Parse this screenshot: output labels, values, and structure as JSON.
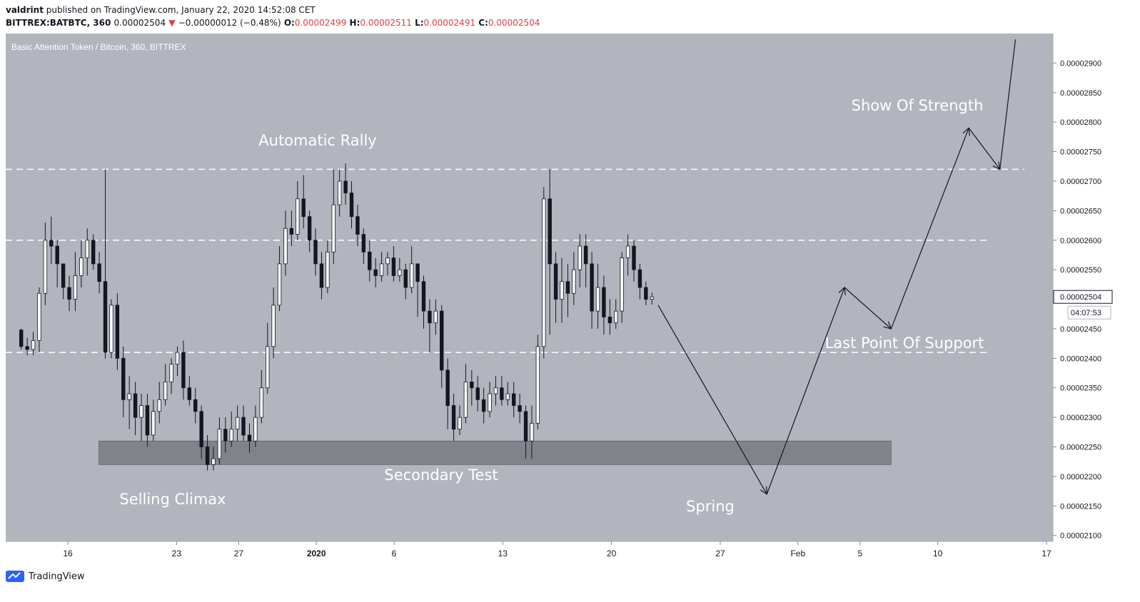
{
  "header": {
    "user": "valdrint",
    "published_text": " published on TradingView.com, January 22, 2020 14:52:08 CET",
    "symbol": "BITTREX:BATBTC, 360",
    "price": "0.00002504",
    "change": "−0.00000012 (−0.48%)",
    "o_label": "O:",
    "o_value": "0.00002499",
    "h_label": "H:",
    "h_value": "0.00002511",
    "l_label": "L:",
    "l_value": "0.00002491",
    "c_label": "C:",
    "c_value": "0.00002504"
  },
  "footer": {
    "brand": "TradingView"
  },
  "colors": {
    "plot_bg": "#b2b5be",
    "dash": "#ffffff",
    "zone": "#7b7d84",
    "red": "#e03c3c"
  },
  "chart_data": {
    "type": "candlestick",
    "title": "Basic Attention Token / Bitcoin, 360, BITTREX",
    "ylim": [
      2.09e-05,
      2.95e-05
    ],
    "y_ticks": [
      "0.00002900",
      "0.00002850",
      "0.00002800",
      "0.00002750",
      "0.00002700",
      "0.00002650",
      "0.00002600",
      "0.00002550",
      "0.00002450",
      "0.00002400",
      "0.00002350",
      "0.00002300",
      "0.00002250",
      "0.00002200",
      "0.00002150",
      "0.00002100"
    ],
    "x_ticks": [
      "16",
      "23",
      "27",
      "2020",
      "6",
      "13",
      "20",
      "27",
      "Feb",
      "5",
      "10",
      "17"
    ],
    "last_price_label": "0.00002504",
    "countdown_label": "04:07:53",
    "levels": [
      2.72e-05,
      2.6e-05,
      2.41e-05
    ],
    "zone": {
      "low": 2.22e-05,
      "high": 2.26e-05,
      "from": "Dec 18",
      "to": "Feb 7"
    },
    "annotations": [
      "Automatic Rally",
      "Show Of Strength",
      "Last Point Of Support",
      "Secondary Test",
      "Selling Climax",
      "Spring"
    ],
    "projection": [
      {
        "x": "Jan 23",
        "y": 2.49e-05
      },
      {
        "x": "Jan 30",
        "y": 2.17e-05
      },
      {
        "x": "Feb 4",
        "y": 2.52e-05
      },
      {
        "x": "Feb 7",
        "y": 2.45e-05
      },
      {
        "x": "Feb 12",
        "y": 2.79e-05
      },
      {
        "x": "Feb 14",
        "y": 2.72e-05
      },
      {
        "x": "Feb 15",
        "y": 2.94e-05
      }
    ],
    "candles": [
      [
        2.448,
        2.42,
        2.45,
        2.415
      ],
      [
        2.42,
        2.415,
        2.435,
        2.405
      ],
      [
        2.415,
        2.43,
        2.445,
        2.405
      ],
      [
        2.43,
        2.51,
        2.52,
        2.41
      ],
      [
        2.51,
        2.6,
        2.63,
        2.49
      ],
      [
        2.6,
        2.59,
        2.64,
        2.56
      ],
      [
        2.59,
        2.56,
        2.6,
        2.52
      ],
      [
        2.56,
        2.52,
        2.56,
        2.5
      ],
      [
        2.52,
        2.5,
        2.54,
        2.48
      ],
      [
        2.5,
        2.54,
        2.58,
        2.48
      ],
      [
        2.54,
        2.57,
        2.6,
        2.52
      ],
      [
        2.57,
        2.6,
        2.62,
        2.54
      ],
      [
        2.6,
        2.56,
        2.61,
        2.55
      ],
      [
        2.56,
        2.53,
        2.58,
        2.51
      ],
      [
        2.53,
        2.41,
        2.72,
        2.4
      ],
      [
        2.41,
        2.49,
        2.5,
        2.4
      ],
      [
        2.49,
        2.4,
        2.51,
        2.38
      ],
      [
        2.4,
        2.33,
        2.42,
        2.3
      ],
      [
        2.33,
        2.34,
        2.37,
        2.28
      ],
      [
        2.34,
        2.3,
        2.36,
        2.27
      ],
      [
        2.3,
        2.32,
        2.34,
        2.26
      ],
      [
        2.32,
        2.27,
        2.34,
        2.25
      ],
      [
        2.27,
        2.31,
        2.33,
        2.26
      ],
      [
        2.31,
        2.33,
        2.36,
        2.29
      ],
      [
        2.33,
        2.36,
        2.39,
        2.32
      ],
      [
        2.36,
        2.39,
        2.4,
        2.34
      ],
      [
        2.39,
        2.41,
        2.42,
        2.37
      ],
      [
        2.41,
        2.35,
        2.43,
        2.33
      ],
      [
        2.35,
        2.33,
        2.37,
        2.32
      ],
      [
        2.33,
        2.31,
        2.35,
        2.29
      ],
      [
        2.31,
        2.25,
        2.32,
        2.23
      ],
      [
        2.25,
        2.22,
        2.27,
        2.21
      ],
      [
        2.22,
        2.23,
        2.25,
        2.21
      ],
      [
        2.23,
        2.28,
        2.3,
        2.22
      ],
      [
        2.28,
        2.26,
        2.3,
        2.24
      ],
      [
        2.26,
        2.28,
        2.31,
        2.25
      ],
      [
        2.28,
        2.3,
        2.32,
        2.26
      ],
      [
        2.3,
        2.27,
        2.32,
        2.26
      ],
      [
        2.27,
        2.26,
        2.29,
        2.24
      ],
      [
        2.26,
        2.3,
        2.32,
        2.25
      ],
      [
        2.3,
        2.35,
        2.38,
        2.29
      ],
      [
        2.35,
        2.42,
        2.46,
        2.34
      ],
      [
        2.42,
        2.49,
        2.52,
        2.4
      ],
      [
        2.49,
        2.56,
        2.59,
        2.48
      ],
      [
        2.56,
        2.62,
        2.65,
        2.54
      ],
      [
        2.62,
        2.61,
        2.65,
        2.59
      ],
      [
        2.61,
        2.67,
        2.7,
        2.6
      ],
      [
        2.67,
        2.64,
        2.71,
        2.62
      ],
      [
        2.64,
        2.6,
        2.65,
        2.58
      ],
      [
        2.6,
        2.56,
        2.62,
        2.54
      ],
      [
        2.56,
        2.52,
        2.58,
        2.5
      ],
      [
        2.52,
        2.58,
        2.6,
        2.51
      ],
      [
        2.58,
        2.66,
        2.72,
        2.56
      ],
      [
        2.66,
        2.7,
        2.72,
        2.64
      ],
      [
        2.7,
        2.68,
        2.73,
        2.66
      ],
      [
        2.68,
        2.64,
        2.7,
        2.62
      ],
      [
        2.64,
        2.61,
        2.66,
        2.59
      ],
      [
        2.61,
        2.58,
        2.62,
        2.56
      ],
      [
        2.58,
        2.55,
        2.6,
        2.53
      ],
      [
        2.55,
        2.54,
        2.57,
        2.52
      ],
      [
        2.54,
        2.56,
        2.58,
        2.53
      ],
      [
        2.56,
        2.57,
        2.58,
        2.54
      ],
      [
        2.57,
        2.54,
        2.59,
        2.53
      ],
      [
        2.54,
        2.55,
        2.57,
        2.53
      ],
      [
        2.55,
        2.52,
        2.56,
        2.5
      ],
      [
        2.52,
        2.56,
        2.59,
        2.51
      ],
      [
        2.56,
        2.53,
        2.56,
        2.47
      ],
      [
        2.53,
        2.48,
        2.54,
        2.45
      ],
      [
        2.48,
        2.46,
        2.5,
        2.41
      ],
      [
        2.46,
        2.48,
        2.5,
        2.44
      ],
      [
        2.48,
        2.38,
        2.49,
        2.35
      ],
      [
        2.38,
        2.32,
        2.4,
        2.28
      ],
      [
        2.32,
        2.28,
        2.34,
        2.26
      ],
      [
        2.28,
        2.3,
        2.32,
        2.27
      ],
      [
        2.3,
        2.36,
        2.39,
        2.29
      ],
      [
        2.36,
        2.35,
        2.38,
        2.32
      ],
      [
        2.35,
        2.33,
        2.37,
        2.31
      ],
      [
        2.33,
        2.31,
        2.35,
        2.29
      ],
      [
        2.31,
        2.34,
        2.36,
        2.3
      ],
      [
        2.34,
        2.35,
        2.37,
        2.32
      ],
      [
        2.35,
        2.33,
        2.37,
        2.32
      ],
      [
        2.33,
        2.34,
        2.36,
        2.32
      ],
      [
        2.34,
        2.32,
        2.36,
        2.3
      ],
      [
        2.32,
        2.31,
        2.34,
        2.29
      ],
      [
        2.31,
        2.26,
        2.32,
        2.23
      ],
      [
        2.26,
        2.29,
        2.32,
        2.23
      ],
      [
        2.29,
        2.42,
        2.44,
        2.28
      ],
      [
        2.42,
        2.67,
        2.69,
        2.4
      ],
      [
        2.67,
        2.56,
        2.72,
        2.44
      ],
      [
        2.56,
        2.5,
        2.58,
        2.46
      ],
      [
        2.5,
        2.53,
        2.57,
        2.46
      ],
      [
        2.53,
        2.51,
        2.56,
        2.47
      ],
      [
        2.51,
        2.55,
        2.58,
        2.49
      ],
      [
        2.55,
        2.59,
        2.61,
        2.52
      ],
      [
        2.59,
        2.56,
        2.61,
        2.52
      ],
      [
        2.56,
        2.48,
        2.58,
        2.45
      ],
      [
        2.48,
        2.52,
        2.56,
        2.45
      ],
      [
        2.52,
        2.47,
        2.54,
        2.44
      ],
      [
        2.47,
        2.46,
        2.5,
        2.44
      ],
      [
        2.46,
        2.48,
        2.5,
        2.45
      ],
      [
        2.48,
        2.57,
        2.58,
        2.46
      ],
      [
        2.57,
        2.59,
        2.61,
        2.54
      ],
      [
        2.59,
        2.55,
        2.6,
        2.53
      ],
      [
        2.55,
        2.52,
        2.56,
        2.5
      ],
      [
        2.52,
        2.5,
        2.53,
        2.49
      ],
      [
        2.5,
        2.504,
        2.511,
        2.491
      ]
    ]
  }
}
